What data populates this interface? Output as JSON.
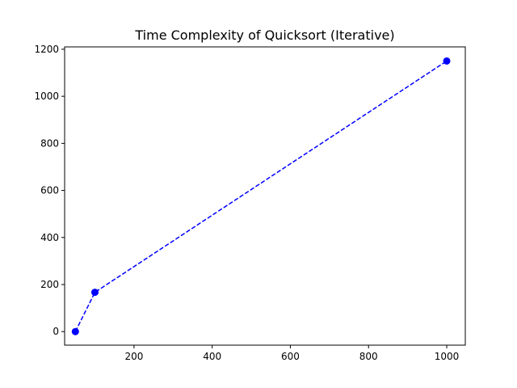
{
  "chart_data": {
    "type": "line",
    "title": "Time Complexity of Quicksort (Iterative)",
    "xlabel": "",
    "ylabel": "",
    "xlim": [
      22.5,
      1047.5
    ],
    "ylim": [
      -57.6,
      1210
    ],
    "x_ticks": [
      200,
      400,
      600,
      800,
      1000
    ],
    "y_ticks": [
      0,
      200,
      400,
      600,
      800,
      1000,
      1200
    ],
    "grid": false,
    "series": [
      {
        "x": [
          50,
          100,
          1000
        ],
        "y": [
          0,
          167,
          1150
        ],
        "color": "#0000ff",
        "line_style": "dashed",
        "marker": "circle"
      }
    ]
  }
}
